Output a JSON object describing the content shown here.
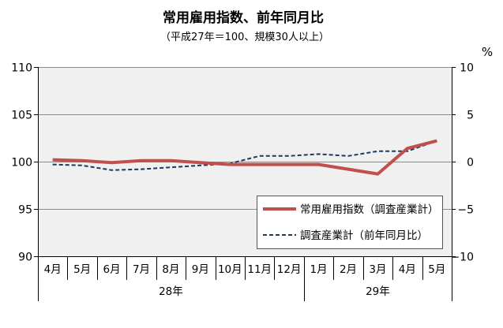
{
  "chart_data": {
    "type": "line",
    "title": "常用雇用指数、前年同月比",
    "subtitle": "（平成27年＝100、規模30人以上）",
    "groups": [
      {
        "label": "28年",
        "categories": [
          "4月",
          "5月",
          "6月",
          "7月",
          "8月",
          "9月",
          "10月",
          "11月",
          "12月"
        ]
      },
      {
        "label": "29年",
        "categories": [
          "1月",
          "2月",
          "3月",
          "4月",
          "5月"
        ]
      }
    ],
    "y_left": {
      "range": [
        90,
        110
      ],
      "ticks": [
        {
          "value": 110,
          "label": "110"
        },
        {
          "value": 105,
          "label": "105"
        },
        {
          "value": 100,
          "label": "100"
        },
        {
          "value": 95,
          "label": "95"
        },
        {
          "value": 90,
          "label": "90"
        }
      ]
    },
    "y_right": {
      "range": [
        -10,
        10
      ],
      "unit": "%",
      "ticks": [
        {
          "value": 10,
          "label": "10"
        },
        {
          "value": 5,
          "label": "5"
        },
        {
          "value": 0,
          "label": "0"
        },
        {
          "value": -5,
          "label": "−5"
        },
        {
          "value": -10,
          "label": "−10"
        }
      ]
    },
    "grid": true,
    "legend_position": "bottom-right",
    "colors": {
      "plot_background": "#f0f0f0"
    },
    "series": [
      {
        "name": "常用雇用指数（調査産業計）",
        "y_axis": "left",
        "line_style": "solid",
        "color": "#c0504d",
        "values": [
          100.2,
          100.1,
          99.9,
          100.1,
          100.1,
          99.9,
          99.7,
          99.7,
          99.7,
          99.7,
          99.2,
          98.7,
          101.4,
          102.2
        ]
      },
      {
        "name": "調査産業計（前年同月比）",
        "y_axis": "right",
        "line_style": "dashed",
        "color": "#1f3864",
        "values": [
          -0.3,
          -0.4,
          -0.9,
          -0.8,
          -0.6,
          -0.4,
          -0.2,
          0.6,
          0.6,
          0.8,
          0.6,
          1.1,
          1.1,
          2.2
        ]
      }
    ]
  }
}
